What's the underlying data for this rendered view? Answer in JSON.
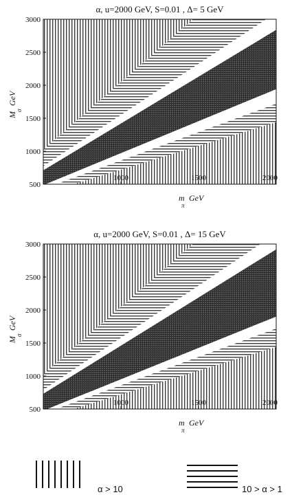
{
  "chart_data": [
    {
      "type": "heatmap",
      "title": "α, u=2000 GeV, S=0.01 , Δ= 5 GeV",
      "xlabel": "m",
      "xlabel_sub": "π",
      "xlabel_unit": "GeV",
      "ylabel": "M",
      "ylabel_sub": "σ",
      "ylabel_unit": "GeV",
      "xlim": [
        500,
        2000
      ],
      "ylim": [
        500,
        3000
      ],
      "xticks": [
        "1000",
        "1500",
        "2000"
      ],
      "yticks": [
        "500",
        "1000",
        "1500",
        "2000",
        "2500",
        "3000"
      ],
      "regions_by_ratio_M_over_m": [
        {
          "region": "α > 10",
          "pattern": "vertical",
          "from": 2.05,
          "to": 6.0
        },
        {
          "region": "10 > α > 1",
          "pattern": "horizontal",
          "from": 1.55,
          "to": 2.05
        },
        {
          "region": "white",
          "pattern": "none",
          "from": 1.42,
          "to": 1.55
        },
        {
          "region": "dark-band",
          "pattern": "dark",
          "from": 0.97,
          "to": 1.42
        },
        {
          "region": "white",
          "pattern": "none",
          "from": 0.86,
          "to": 0.97
        },
        {
          "region": "10 > α > 1",
          "pattern": "horizontal",
          "from": 0.72,
          "to": 0.86
        },
        {
          "region": "α > 10",
          "pattern": "vertical",
          "from": 0.0,
          "to": 0.72
        }
      ]
    },
    {
      "type": "heatmap",
      "title": "α, u=2000 GeV, S=0.01 , Δ= 15 GeV",
      "xlabel": "m",
      "xlabel_sub": "π",
      "xlabel_unit": "GeV",
      "ylabel": "M",
      "ylabel_sub": "σ",
      "ylabel_unit": "GeV",
      "xlim": [
        500,
        2000
      ],
      "ylim": [
        500,
        3000
      ],
      "xticks": [
        "1000",
        "1500",
        "2000"
      ],
      "yticks": [
        "500",
        "1000",
        "1500",
        "2000",
        "2500",
        "3000"
      ],
      "regions_by_ratio_M_over_m": [
        {
          "region": "α > 10",
          "pattern": "vertical",
          "from": 2.05,
          "to": 6.0
        },
        {
          "region": "10 > α > 1",
          "pattern": "horizontal",
          "from": 1.58,
          "to": 2.05
        },
        {
          "region": "white",
          "pattern": "none",
          "from": 1.46,
          "to": 1.58
        },
        {
          "region": "dark-band",
          "pattern": "dark",
          "from": 0.95,
          "to": 1.46
        },
        {
          "region": "white",
          "pattern": "none",
          "from": 0.86,
          "to": 0.95
        },
        {
          "region": "10 > α > 1",
          "pattern": "horizontal",
          "from": 0.72,
          "to": 0.86
        },
        {
          "region": "α > 10",
          "pattern": "vertical",
          "from": 0.0,
          "to": 0.72
        }
      ]
    }
  ],
  "legend": [
    {
      "label": "α > 10",
      "pattern": "vertical"
    },
    {
      "label": "10 > α > 1",
      "pattern": "horizontal"
    }
  ]
}
